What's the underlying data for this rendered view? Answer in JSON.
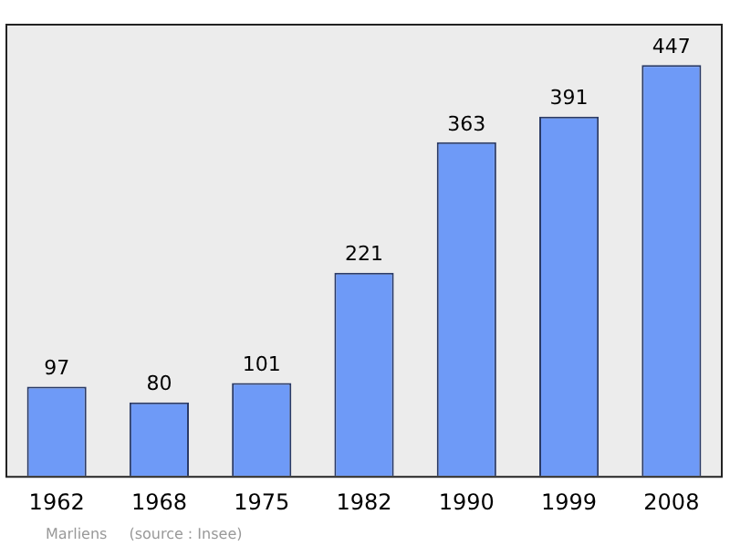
{
  "chart_data": {
    "type": "bar",
    "categories": [
      "1962",
      "1968",
      "1975",
      "1982",
      "1990",
      "1999",
      "2008"
    ],
    "values": [
      97,
      80,
      101,
      221,
      363,
      391,
      447
    ],
    "color": "#6e9af7",
    "ylim": [
      0,
      492
    ],
    "data_labels": true,
    "grid": false,
    "legend": false,
    "tick_labels": "x",
    "annotations": [
      "Marliens",
      "(source : Insee)"
    ]
  }
}
